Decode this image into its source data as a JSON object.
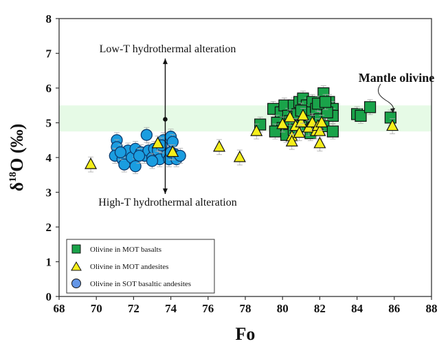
{
  "chart_data": {
    "type": "scatter",
    "title": "",
    "xlabel": "Fo",
    "ylabel_parts": {
      "delta": "δ",
      "sup": "18",
      "rest": "O (‰)"
    },
    "xlim": [
      68,
      88
    ],
    "ylim": [
      0,
      8
    ],
    "xticks": [
      "68",
      "70",
      "72",
      "74",
      "76",
      "78",
      "80",
      "82",
      "84",
      "86",
      "88"
    ],
    "yticks": [
      "0",
      "1",
      "2",
      "3",
      "4",
      "5",
      "6",
      "7",
      "8"
    ],
    "grid": false,
    "legend_position": "bottom-left",
    "mantle_band": {
      "ymin": 4.75,
      "ymax": 5.5,
      "color": "#e6fae6"
    },
    "annotations": {
      "low_t": "Low-T hydrothermal alteration",
      "high_t": "High-T hydrothermal alteration",
      "mantle": "Mantle olivine",
      "vertical_arrow": {
        "x": 73.7,
        "y_from": 2.95,
        "y_to": 6.85,
        "marker_y": 5.1
      }
    },
    "series": [
      {
        "name": "Olivine in MOT basalts",
        "marker": "square",
        "color": "#1aa34a",
        "points": [
          [
            79.5,
            5.4
          ],
          [
            79.9,
            5.3
          ],
          [
            80.1,
            5.5
          ],
          [
            80.3,
            5.2
          ],
          [
            80.6,
            5.5
          ],
          [
            80.9,
            5.6
          ],
          [
            81.1,
            5.7
          ],
          [
            81.3,
            5.5
          ],
          [
            81.6,
            5.6
          ],
          [
            81.8,
            5.4
          ],
          [
            82.2,
            5.85
          ],
          [
            82.5,
            5.6
          ],
          [
            82.7,
            5.4
          ],
          [
            82.7,
            5.2
          ],
          [
            79.7,
            5.0
          ],
          [
            80.0,
            4.85
          ],
          [
            80.4,
            5.05
          ],
          [
            80.8,
            5.25
          ],
          [
            81.2,
            5.3
          ],
          [
            81.6,
            5.05
          ],
          [
            82.0,
            5.1
          ],
          [
            82.4,
            5.3
          ],
          [
            78.8,
            4.95
          ],
          [
            79.6,
            4.75
          ],
          [
            80.2,
            4.65
          ],
          [
            80.6,
            4.8
          ],
          [
            81.0,
            4.9
          ],
          [
            81.5,
            4.7
          ],
          [
            82.2,
            4.9
          ],
          [
            82.7,
            4.75
          ],
          [
            81.0,
            5.35
          ],
          [
            81.9,
            5.55
          ],
          [
            82.3,
            5.6
          ],
          [
            84.0,
            5.25
          ],
          [
            84.2,
            5.2
          ],
          [
            84.7,
            5.45
          ],
          [
            85.8,
            5.15
          ]
        ]
      },
      {
        "name": "Olivine in MOT andesites",
        "marker": "triangle",
        "color": "#f5ee1a",
        "points": [
          [
            69.7,
            3.8
          ],
          [
            73.3,
            4.4
          ],
          [
            74.1,
            4.15
          ],
          [
            76.6,
            4.3
          ],
          [
            77.7,
            4.0
          ],
          [
            78.6,
            4.75
          ],
          [
            80.0,
            4.95
          ],
          [
            80.4,
            5.15
          ],
          [
            80.5,
            4.6
          ],
          [
            80.5,
            4.45
          ],
          [
            80.7,
            4.9
          ],
          [
            81.0,
            5.0
          ],
          [
            81.1,
            5.2
          ],
          [
            81.4,
            4.85
          ],
          [
            81.6,
            5.0
          ],
          [
            81.8,
            4.75
          ],
          [
            81.9,
            4.9
          ],
          [
            82.0,
            4.75
          ],
          [
            82.1,
            5.0
          ],
          [
            82.0,
            4.4
          ],
          [
            80.9,
            4.7
          ],
          [
            85.9,
            4.9
          ]
        ]
      },
      {
        "name": "Olivine in SOT basaltic andesites",
        "marker": "circle",
        "color": "#1a9de0",
        "points": [
          [
            71.1,
            4.5
          ],
          [
            71.1,
            4.3
          ],
          [
            71.0,
            4.05
          ],
          [
            71.4,
            3.95
          ],
          [
            71.5,
            3.8
          ],
          [
            71.7,
            4.2
          ],
          [
            71.9,
            4.0
          ],
          [
            72.1,
            3.75
          ],
          [
            72.1,
            4.25
          ],
          [
            72.4,
            4.15
          ],
          [
            72.6,
            4.05
          ],
          [
            72.7,
            4.65
          ],
          [
            72.8,
            4.2
          ],
          [
            73.0,
            4.0
          ],
          [
            73.1,
            4.25
          ],
          [
            73.3,
            4.2
          ],
          [
            73.4,
            3.95
          ],
          [
            73.6,
            4.5
          ],
          [
            73.8,
            4.1
          ],
          [
            73.9,
            3.95
          ],
          [
            74.0,
            4.6
          ],
          [
            74.1,
            4.45
          ],
          [
            74.2,
            4.1
          ],
          [
            74.3,
            3.95
          ],
          [
            74.5,
            4.05
          ],
          [
            72.3,
            4.05
          ],
          [
            73.0,
            3.9
          ],
          [
            73.5,
            4.35
          ],
          [
            74.0,
            4.15
          ],
          [
            71.3,
            4.15
          ]
        ]
      }
    ]
  }
}
